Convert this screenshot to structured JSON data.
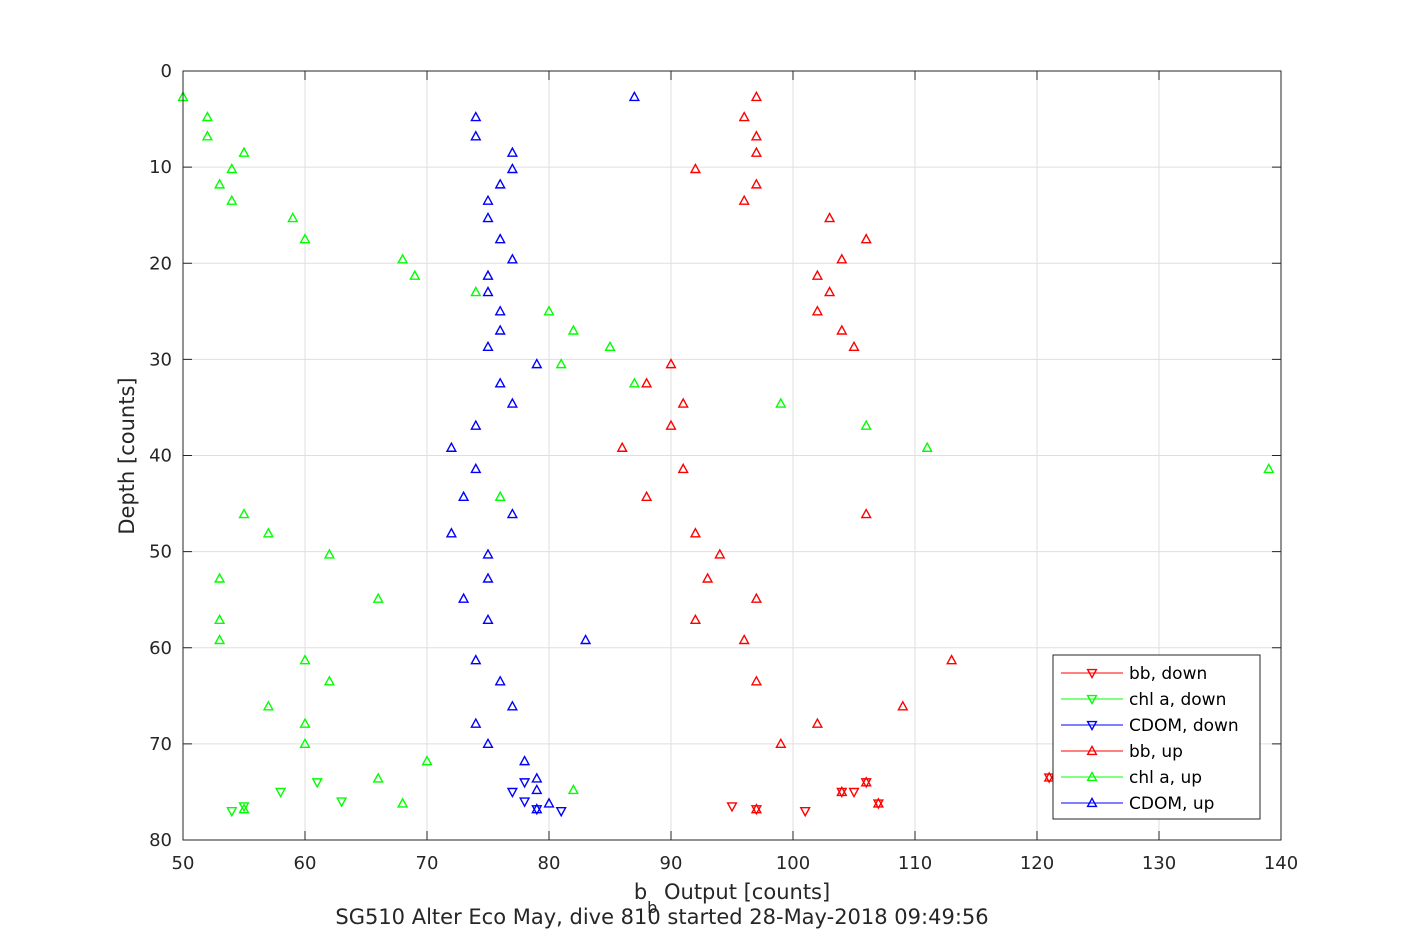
{
  "chart_data": {
    "type": "scatter",
    "title": "SG510 Alter Eco May, dive 810 started 28-May-2018 09:49:56",
    "xlabel_main": "b",
    "xlabel_sub": "b",
    "xlabel_rest": " Output [counts]",
    "ylabel": "Depth [counts]",
    "xlim": [
      50,
      140
    ],
    "ylim": [
      0,
      80
    ],
    "y_reversed": true,
    "grid": true,
    "legend_position": "bottom-right",
    "x_ticks": [
      "50",
      "60",
      "70",
      "80",
      "90",
      "100",
      "110",
      "120",
      "130",
      "140"
    ],
    "y_ticks": [
      "0",
      "10",
      "20",
      "30",
      "40",
      "50",
      "60",
      "70",
      "80"
    ],
    "series": [
      {
        "name": "bb, down",
        "color": "#ff0000",
        "marker": "triangle-down",
        "points": [
          [
            104,
            75
          ],
          [
            106,
            74
          ],
          [
            105,
            75
          ],
          [
            107,
            76.2
          ],
          [
            121,
            73.5
          ],
          [
            97,
            76.8
          ],
          [
            95,
            76.5
          ],
          [
            101,
            77
          ]
        ]
      },
      {
        "name": "chl a, down",
        "color": "#00ff00",
        "marker": "triangle-down",
        "points": [
          [
            61,
            74
          ],
          [
            58,
            75
          ],
          [
            63,
            76
          ],
          [
            55,
            76.5
          ],
          [
            54,
            77
          ]
        ]
      },
      {
        "name": "CDOM, down",
        "color": "#0000ff",
        "marker": "triangle-down",
        "points": [
          [
            78,
            74
          ],
          [
            77,
            75
          ],
          [
            78,
            76
          ],
          [
            79,
            76.8
          ],
          [
            81,
            77
          ]
        ]
      },
      {
        "name": "bb, up",
        "color": "#ff0000",
        "marker": "triangle-up",
        "points": [
          [
            97,
            2.7
          ],
          [
            96,
            4.8
          ],
          [
            97,
            6.8
          ],
          [
            97,
            8.5
          ],
          [
            92,
            10.2
          ],
          [
            97,
            11.8
          ],
          [
            96,
            13.5
          ],
          [
            103,
            15.3
          ],
          [
            106,
            17.5
          ],
          [
            104,
            19.6
          ],
          [
            102,
            21.3
          ],
          [
            103,
            23
          ],
          [
            102,
            25
          ],
          [
            104,
            27
          ],
          [
            105,
            28.7
          ],
          [
            90,
            30.5
          ],
          [
            88,
            32.5
          ],
          [
            91,
            34.6
          ],
          [
            90,
            36.9
          ],
          [
            86,
            39.2
          ],
          [
            91,
            41.4
          ],
          [
            88,
            44.3
          ],
          [
            106,
            46.1
          ],
          [
            92,
            48.1
          ],
          [
            94,
            50.3
          ],
          [
            93,
            52.8
          ],
          [
            97,
            54.9
          ],
          [
            92,
            57.1
          ],
          [
            96,
            59.2
          ],
          [
            113,
            61.3
          ],
          [
            97,
            63.5
          ],
          [
            109,
            66.1
          ],
          [
            102,
            67.9
          ],
          [
            99,
            70
          ],
          [
            121,
            73.5
          ],
          [
            106,
            74
          ],
          [
            104,
            75
          ],
          [
            107,
            76.2
          ],
          [
            97,
            76.8
          ]
        ]
      },
      {
        "name": "chl a, up",
        "color": "#00ff00",
        "marker": "triangle-up",
        "points": [
          [
            50,
            2.7
          ],
          [
            52,
            4.8
          ],
          [
            52,
            6.8
          ],
          [
            55,
            8.5
          ],
          [
            54,
            10.2
          ],
          [
            53,
            11.8
          ],
          [
            54,
            13.5
          ],
          [
            59,
            15.3
          ],
          [
            60,
            17.5
          ],
          [
            68,
            19.6
          ],
          [
            69,
            21.3
          ],
          [
            74,
            23
          ],
          [
            80,
            25
          ],
          [
            82,
            27
          ],
          [
            85,
            28.7
          ],
          [
            81,
            30.5
          ],
          [
            87,
            32.5
          ],
          [
            99,
            34.6
          ],
          [
            106,
            36.9
          ],
          [
            111,
            39.2
          ],
          [
            139,
            41.4
          ],
          [
            76,
            44.3
          ],
          [
            55,
            46.1
          ],
          [
            57,
            48.1
          ],
          [
            62,
            50.3
          ],
          [
            53,
            52.8
          ],
          [
            66,
            54.9
          ],
          [
            53,
            57.1
          ],
          [
            53,
            59.2
          ],
          [
            60,
            61.3
          ],
          [
            62,
            63.5
          ],
          [
            57,
            66.1
          ],
          [
            60,
            67.9
          ],
          [
            60,
            70
          ],
          [
            70,
            71.8
          ],
          [
            66,
            73.6
          ],
          [
            82,
            74.8
          ],
          [
            68,
            76.2
          ],
          [
            55,
            76.8
          ]
        ]
      },
      {
        "name": "CDOM, up",
        "color": "#0000ff",
        "marker": "triangle-up",
        "points": [
          [
            87,
            2.7
          ],
          [
            74,
            4.8
          ],
          [
            74,
            6.8
          ],
          [
            77,
            8.5
          ],
          [
            77,
            10.2
          ],
          [
            76,
            11.8
          ],
          [
            75,
            13.5
          ],
          [
            75,
            15.3
          ],
          [
            76,
            17.5
          ],
          [
            77,
            19.6
          ],
          [
            75,
            21.3
          ],
          [
            75,
            23
          ],
          [
            76,
            25
          ],
          [
            76,
            27
          ],
          [
            75,
            28.7
          ],
          [
            79,
            30.5
          ],
          [
            76,
            32.5
          ],
          [
            77,
            34.6
          ],
          [
            74,
            36.9
          ],
          [
            72,
            39.2
          ],
          [
            74,
            41.4
          ],
          [
            73,
            44.3
          ],
          [
            77,
            46.1
          ],
          [
            72,
            48.1
          ],
          [
            75,
            50.3
          ],
          [
            75,
            52.8
          ],
          [
            73,
            54.9
          ],
          [
            75,
            57.1
          ],
          [
            83,
            59.2
          ],
          [
            74,
            61.3
          ],
          [
            76,
            63.5
          ],
          [
            77,
            66.1
          ],
          [
            74,
            67.9
          ],
          [
            75,
            70
          ],
          [
            78,
            71.8
          ],
          [
            79,
            73.6
          ],
          [
            79,
            74.8
          ],
          [
            80,
            76.2
          ],
          [
            79,
            76.8
          ]
        ]
      }
    ]
  }
}
